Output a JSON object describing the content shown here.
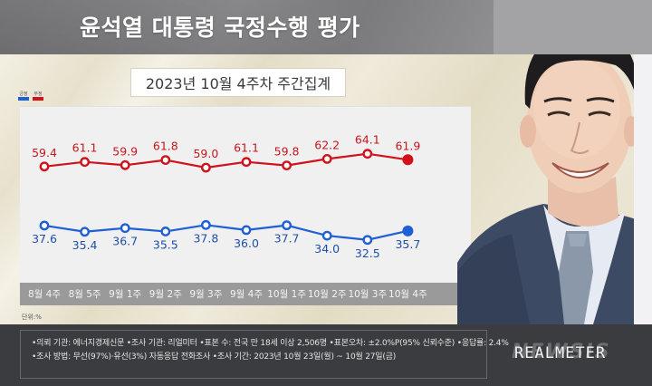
{
  "header": {
    "title": "윤석열 대통령 국정수행 평가"
  },
  "subtitle": "2023년 10월 4주차 주간집계",
  "legend": {
    "positive": {
      "label": "긍정",
      "color": "#1f5fd6"
    },
    "negative": {
      "label": "부정",
      "color": "#d0131b"
    }
  },
  "unit_label": "단위:%",
  "footer": {
    "line1": "•의뢰 기관: 에너지경제신문 •조사 기관: 리얼미터 •표본 수: 전국 만 18세 이상 2,506명 •표본오차: ±2.0%P(95% 신뢰수준) •응답률: 2.4%",
    "line2": "•조사 방법: 무선(97%)·유선(3%) 자동응답 전화조사 •조사 기간: 2023년 10월 23일(월) ~ 10월 27일(금)",
    "logo": "REALMETER",
    "watermark": "NEWSIS"
  },
  "chart_data": {
    "type": "line",
    "title": "윤석열 대통령 국정수행 평가",
    "subtitle": "2023년 10월 4주차 주간집계",
    "xlabel": "",
    "ylabel": "단위:%",
    "categories": [
      "8월 4주",
      "8월 5주",
      "9월 1주",
      "9월 2주",
      "9월 3주",
      "9월 4주",
      "10월 1주",
      "10월 2주",
      "10월 3주",
      "10월 4주"
    ],
    "series": [
      {
        "name": "부정",
        "color": "#d0131b",
        "values": [
          59.4,
          61.1,
          59.9,
          61.8,
          59.0,
          61.1,
          59.8,
          62.2,
          64.1,
          61.9
        ]
      },
      {
        "name": "긍정",
        "color": "#1f5fd6",
        "values": [
          37.6,
          35.4,
          36.7,
          35.5,
          37.8,
          36.0,
          37.7,
          34.0,
          32.5,
          35.7
        ]
      }
    ],
    "legend_position": "top-left",
    "grid": false,
    "data_labels": true
  },
  "colors": {
    "negative_line": "#d0131b",
    "positive_line": "#1f5fd6",
    "header_bg": "#7f7f81",
    "footer_bg": "#3b3c3f",
    "axis_band": "#9a9a9a"
  }
}
